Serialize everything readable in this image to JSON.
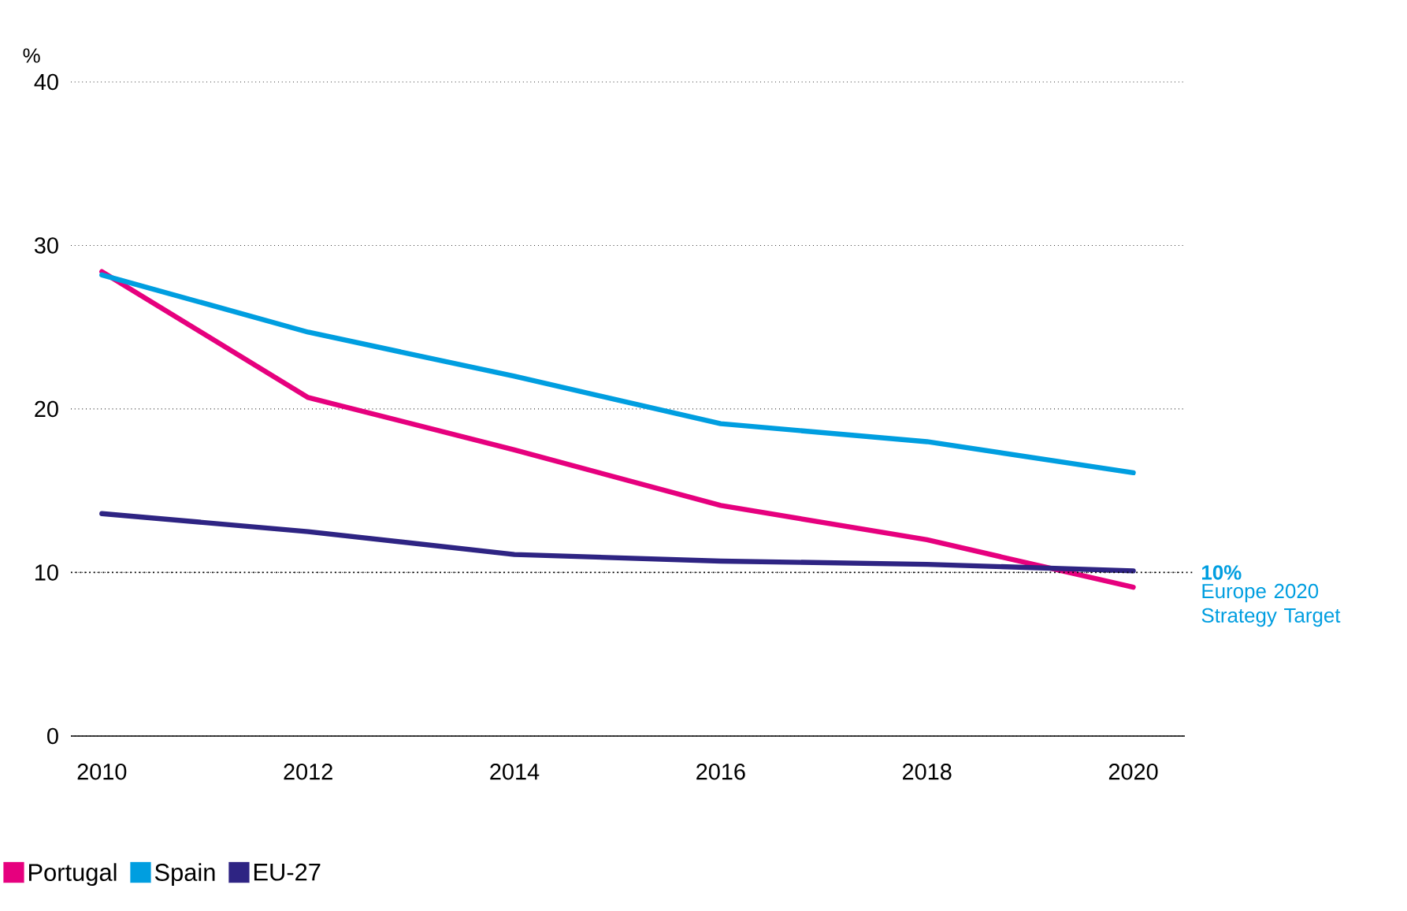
{
  "chart_data": {
    "type": "line",
    "ylabel": "%",
    "x": [
      2010,
      2012,
      2014,
      2016,
      2018,
      2020
    ],
    "series": [
      {
        "name": "Portugal",
        "color": "#e6007e",
        "values": [
          28.4,
          20.7,
          17.5,
          14.1,
          12.0,
          9.1
        ]
      },
      {
        "name": "Spain",
        "color": "#009ee0",
        "values": [
          28.2,
          24.7,
          22.0,
          19.1,
          18.0,
          16.1
        ]
      },
      {
        "name": "EU-27",
        "color": "#2e2483",
        "values": [
          13.6,
          12.5,
          11.1,
          10.7,
          10.5,
          10.1
        ]
      }
    ],
    "xlim": [
      2009.7,
      2020.5
    ],
    "ylim": [
      0,
      40
    ],
    "xticks": [
      2010,
      2012,
      2014,
      2016,
      2018,
      2020
    ],
    "yticks": [
      0,
      10,
      20,
      30,
      40
    ],
    "grid": "y",
    "legend": "bottom left",
    "marker": "none",
    "line_style": "solid",
    "ref_lines": [
      {
        "axis": "y",
        "value": 10,
        "label": "Europe 2020 Strategy Target"
      }
    ],
    "annotations": [
      "10%"
    ]
  }
}
